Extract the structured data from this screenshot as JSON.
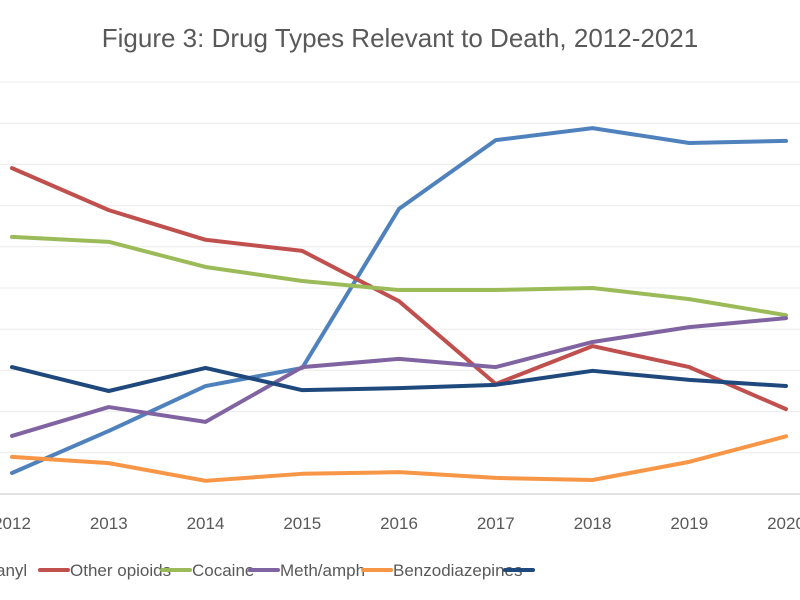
{
  "chart_data": {
    "type": "line",
    "title": "Figure 3: Drug Types Relevant to Death, 2012-2021",
    "xlabel": "",
    "ylabel": "",
    "categories": [
      "2012",
      "2013",
      "2014",
      "2015",
      "2016",
      "2017",
      "2018",
      "2019",
      "2020"
    ],
    "ylim": [
      0,
      10
    ],
    "y_tick_labels_visible": false,
    "grid": true,
    "legend_position": "bottom",
    "series": [
      {
        "name": "Fentanyl",
        "color": "#4F81BD",
        "values": [
          0.51,
          1.53,
          2.62,
          3.06,
          6.92,
          8.59,
          8.88,
          8.52,
          8.57
        ]
      },
      {
        "name": "Other opioids",
        "color": "#C0504D",
        "values": [
          7.91,
          6.89,
          6.17,
          5.9,
          4.68,
          2.67,
          3.59,
          3.08,
          2.06
        ]
      },
      {
        "name": "Cocaine",
        "color": "#9BBB59",
        "values": [
          6.24,
          6.12,
          5.51,
          5.17,
          4.95,
          4.95,
          5.0,
          4.73,
          4.34
        ]
      },
      {
        "name": "Meth/amph",
        "color": "#8064A2",
        "values": [
          1.41,
          2.11,
          1.75,
          3.08,
          3.28,
          3.08,
          3.69,
          4.05,
          4.27
        ]
      },
      {
        "name": "Benzodiazepines",
        "color": "#F79646",
        "values": [
          0.9,
          0.75,
          0.32,
          0.49,
          0.53,
          0.39,
          0.34,
          0.78,
          1.4
        ]
      },
      {
        "color": "#1F497D",
        "values": [
          3.08,
          2.5,
          3.06,
          2.52,
          2.57,
          2.65,
          2.99,
          2.77,
          2.62
        ]
      }
    ]
  }
}
